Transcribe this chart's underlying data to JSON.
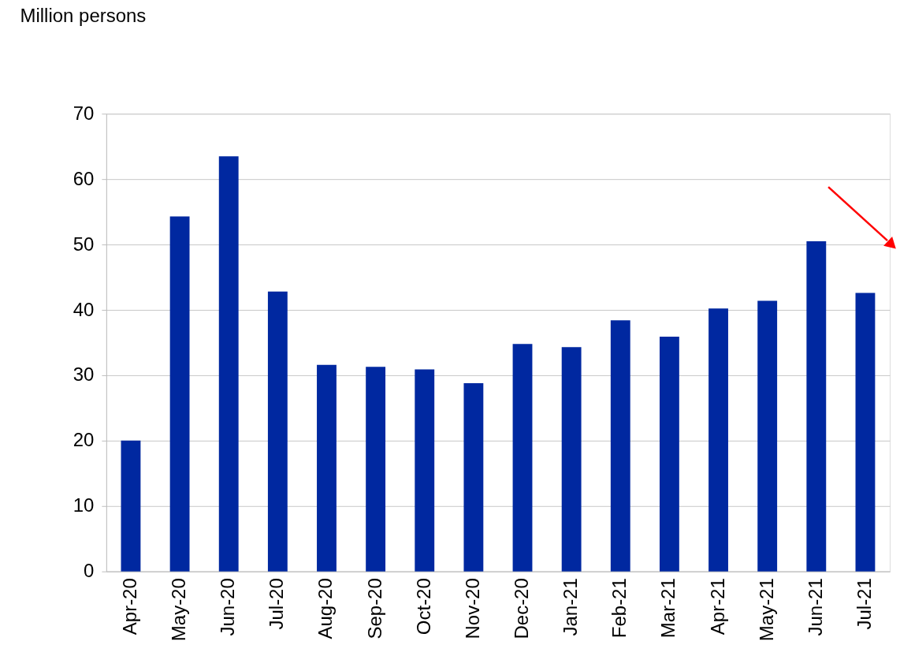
{
  "chart_data": {
    "type": "bar",
    "ylabel": "Million persons",
    "categories": [
      "Apr-20",
      "May-20",
      "Jun-20",
      "Jul-20",
      "Aug-20",
      "Sep-20",
      "Oct-20",
      "Nov-20",
      "Dec-20",
      "Jan-21",
      "Feb-21",
      "Mar-21",
      "Apr-21",
      "May-21",
      "Jun-21",
      "Jul-21"
    ],
    "values": [
      20.0,
      54.3,
      63.5,
      42.8,
      31.6,
      31.3,
      30.9,
      28.8,
      34.8,
      34.3,
      38.4,
      35.9,
      40.2,
      41.4,
      50.5,
      42.6
    ],
    "color": "#0028a0",
    "ylim": [
      0,
      70
    ],
    "yticks": [
      0,
      10,
      20,
      30,
      40,
      50,
      60,
      70
    ],
    "grid": "y"
  }
}
